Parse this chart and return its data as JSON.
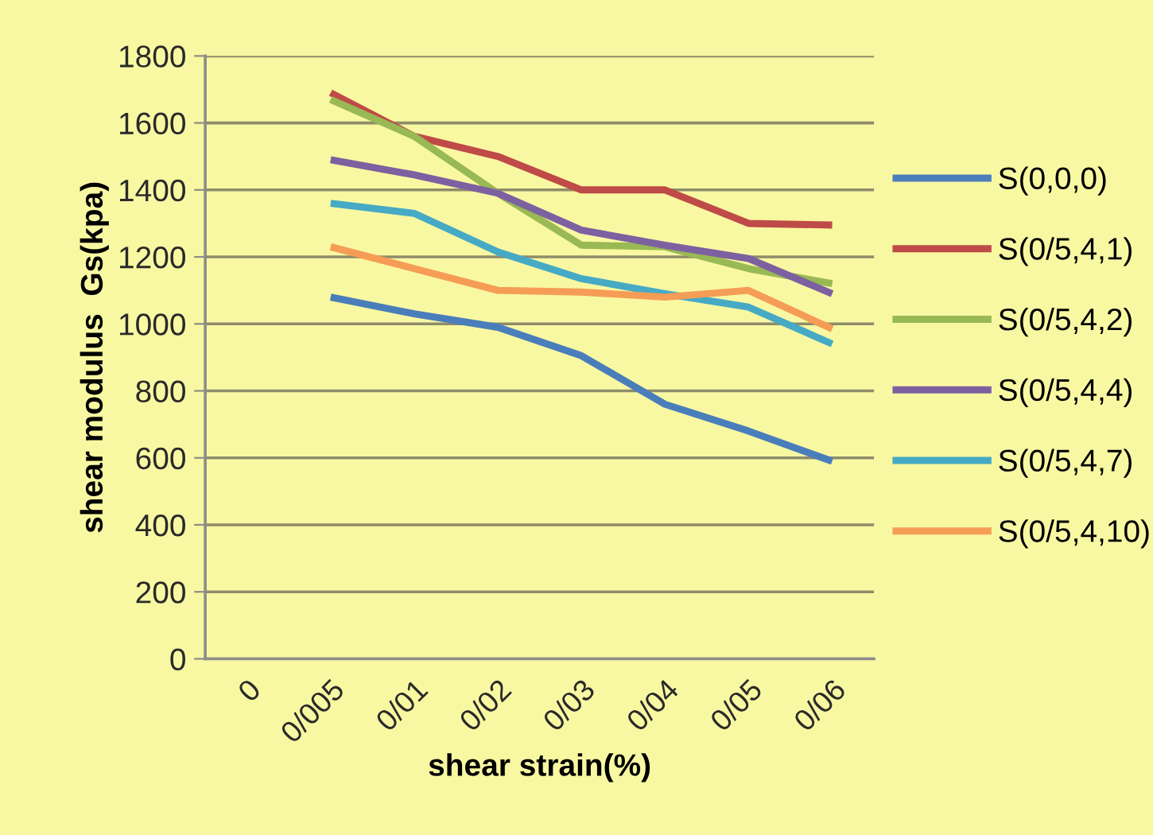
{
  "chart_data": {
    "type": "line",
    "xlabel": "shear strain(%)",
    "ylabel": "shear modulus  Gs(kpa)",
    "categories": [
      "0",
      "0/005",
      "0/01",
      "0/02",
      "0/03",
      "0/04",
      "0/05",
      "0/06"
    ],
    "ylim": [
      0,
      1800
    ],
    "yticks": [
      0,
      200,
      400,
      600,
      800,
      1000,
      1200,
      1400,
      1600,
      1800
    ],
    "grid": "y",
    "legend": "right",
    "series": [
      {
        "name": "S(0,0,0)",
        "color": "#4a7ebb",
        "values": [
          null,
          1080,
          1030,
          990,
          905,
          760,
          680,
          590
        ]
      },
      {
        "name": "S(0/5,4,1)",
        "color": "#be4b48",
        "values": [
          null,
          1690,
          1560,
          1500,
          1400,
          1400,
          1300,
          1295
        ]
      },
      {
        "name": "S(0/5,4,2)",
        "color": "#98b954",
        "values": [
          null,
          1670,
          1560,
          1390,
          1235,
          1230,
          1165,
          1120
        ]
      },
      {
        "name": "S(0/5,4,4)",
        "color": "#7d60a0",
        "values": [
          null,
          1490,
          1445,
          1390,
          1280,
          1235,
          1195,
          1090
        ]
      },
      {
        "name": "S(0/5,4,7)",
        "color": "#46aac5",
        "values": [
          null,
          1360,
          1330,
          1215,
          1135,
          1090,
          1050,
          940
        ]
      },
      {
        "name": "S(0/5,4,10)",
        "color": "#f59d56",
        "values": [
          null,
          1230,
          1165,
          1100,
          1095,
          1080,
          1100,
          985
        ]
      }
    ]
  }
}
